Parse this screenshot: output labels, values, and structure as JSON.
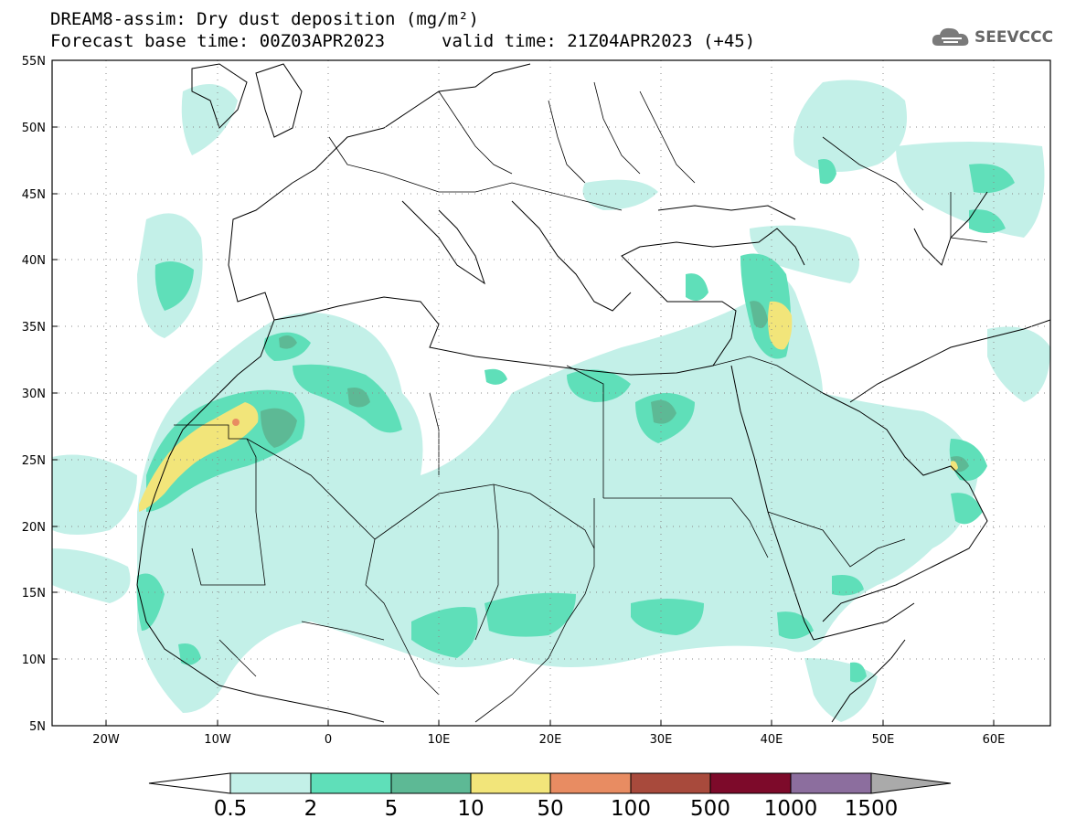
{
  "header": {
    "title_line1": "DREAM8-assim: Dry dust deposition (mg/m²)",
    "title_line2": "Forecast base time: 00Z03APR2023",
    "valid_time": "valid time: 21Z04APR2023 (+45)"
  },
  "logo": {
    "name": "cloud-logo-icon",
    "text": "SEEVCCC"
  },
  "axes": {
    "lat_labels": [
      "55N",
      "50N",
      "45N",
      "40N",
      "35N",
      "30N",
      "25N",
      "20N",
      "15N",
      "10N",
      "5N"
    ],
    "lon_labels": [
      "20W",
      "10W",
      "0",
      "10E",
      "20E",
      "30E",
      "40E",
      "50E",
      "60E"
    ],
    "grid": true
  },
  "colorbar": {
    "labels": [
      "0.5",
      "2",
      "5",
      "10",
      "50",
      "100",
      "500",
      "1000",
      "1500"
    ],
    "colors": [
      "#c3f0e8",
      "#5fdfb9",
      "#5db995",
      "#f2e57a",
      "#e88c62",
      "#a84a3c",
      "#7d0a2a",
      "#8c6e9e"
    ],
    "under_color": "#ffffff",
    "over_color": "#aaaaaa"
  }
}
